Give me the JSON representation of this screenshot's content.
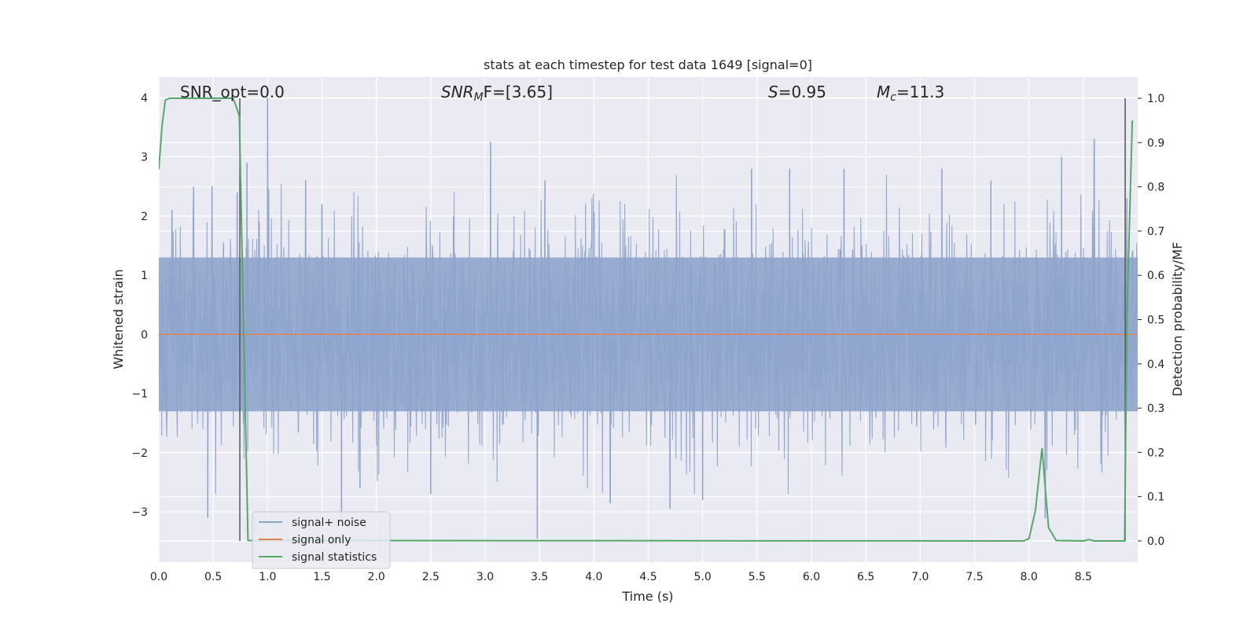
{
  "chart_data": {
    "type": "line",
    "title": "stats at each timestep for test data 1649 [signal=0]",
    "xlabel": "Time (s)",
    "ylabel": "Whitened strain",
    "y2label": "Detection probability/MF",
    "xlim": [
      0.0,
      9.0
    ],
    "ylim": [
      -3.85,
      4.35
    ],
    "y2lim": [
      -0.048,
      1.048
    ],
    "x_ticks": [
      "0.0",
      "0.5",
      "1.0",
      "1.5",
      "2.0",
      "2.5",
      "3.0",
      "3.5",
      "4.0",
      "4.5",
      "5.0",
      "5.5",
      "6.0",
      "6.5",
      "7.0",
      "7.5",
      "8.0",
      "8.5"
    ],
    "y_ticks": [
      "4",
      "3",
      "2",
      "1",
      "0",
      "−1",
      "−2",
      "−3"
    ],
    "y2_ticks": [
      "1.0",
      "0.9",
      "0.8",
      "0.7",
      "0.6",
      "0.5",
      "0.4",
      "0.3",
      "0.2",
      "0.1",
      "0.0"
    ],
    "grid": true,
    "legend_position": "lower-left",
    "annotations": {
      "snr_opt": "SNR_opt=0.0",
      "snr_mf_base": "SNR",
      "snr_mf_sub": "M",
      "snr_mf_rest": "F=[3.65]",
      "s_stat_var": "S",
      "s_stat_rest": "=0.95",
      "mc_var": "M",
      "mc_sub": "c",
      "mc_rest": "=11.3"
    },
    "series": [
      {
        "name": "signal+ noise",
        "color": "#8fa4cc",
        "description_values": "whitened strain noise fluctuating between about -3.5 and 4",
        "noise_peaks": [
          {
            "x": 0.12,
            "y": 2.1
          },
          {
            "x": 0.32,
            "y": 2.5
          },
          {
            "x": 0.45,
            "y": -3.1
          },
          {
            "x": 0.49,
            "y": 2.5
          },
          {
            "x": 0.72,
            "y": 2.4
          },
          {
            "x": 0.81,
            "y": 2.9
          },
          {
            "x": 1.0,
            "y": 4.0
          },
          {
            "x": 1.35,
            "y": 2.6
          },
          {
            "x": 1.5,
            "y": 2.2
          },
          {
            "x": 1.68,
            "y": -3.2
          },
          {
            "x": 1.85,
            "y": -2.6
          },
          {
            "x": 2.5,
            "y": -2.7
          },
          {
            "x": 3.05,
            "y": 3.25
          },
          {
            "x": 3.48,
            "y": -3.45
          },
          {
            "x": 3.55,
            "y": 2.6
          },
          {
            "x": 4.15,
            "y": -2.85
          },
          {
            "x": 4.7,
            "y": -2.95
          },
          {
            "x": 5.0,
            "y": -2.8
          },
          {
            "x": 5.45,
            "y": 2.8
          },
          {
            "x": 5.8,
            "y": 2.8
          },
          {
            "x": 6.3,
            "y": 2.8
          },
          {
            "x": 7.2,
            "y": 2.8
          },
          {
            "x": 7.65,
            "y": 2.6
          },
          {
            "x": 8.15,
            "y": -3.1
          },
          {
            "x": 8.3,
            "y": 3.0
          },
          {
            "x": 8.6,
            "y": 3.3
          },
          {
            "x": 8.9,
            "y": 2.3
          }
        ]
      },
      {
        "name": "signal only",
        "color": "#dd8452",
        "values": [
          {
            "x": 0.0,
            "y": 0.0
          },
          {
            "x": 9.0,
            "y": 0.0
          }
        ]
      },
      {
        "name": "signal statistics",
        "color": "#55a868",
        "axis": "right",
        "values": [
          {
            "x": 0.0,
            "y": 0.84
          },
          {
            "x": 0.03,
            "y": 0.94
          },
          {
            "x": 0.06,
            "y": 0.996
          },
          {
            "x": 0.1,
            "y": 1.0
          },
          {
            "x": 0.68,
            "y": 1.0
          },
          {
            "x": 0.7,
            "y": 0.99
          },
          {
            "x": 0.74,
            "y": 0.96
          },
          {
            "x": 0.82,
            "y": 0.001
          },
          {
            "x": 7.95,
            "y": 0.0
          },
          {
            "x": 8.0,
            "y": 0.005
          },
          {
            "x": 8.06,
            "y": 0.07
          },
          {
            "x": 8.12,
            "y": 0.21
          },
          {
            "x": 8.18,
            "y": 0.03
          },
          {
            "x": 8.25,
            "y": 0.001
          },
          {
            "x": 8.5,
            "y": 0.0
          },
          {
            "x": 8.55,
            "y": 0.003
          },
          {
            "x": 8.6,
            "y": 0.0
          },
          {
            "x": 8.88,
            "y": 0.0
          },
          {
            "x": 8.9,
            "y": 0.5
          },
          {
            "x": 8.95,
            "y": 0.95
          }
        ]
      }
    ],
    "vertical_lines": [
      {
        "x": 0.745,
        "color": "#555555"
      },
      {
        "x": 8.885,
        "color": "#555555"
      }
    ]
  }
}
